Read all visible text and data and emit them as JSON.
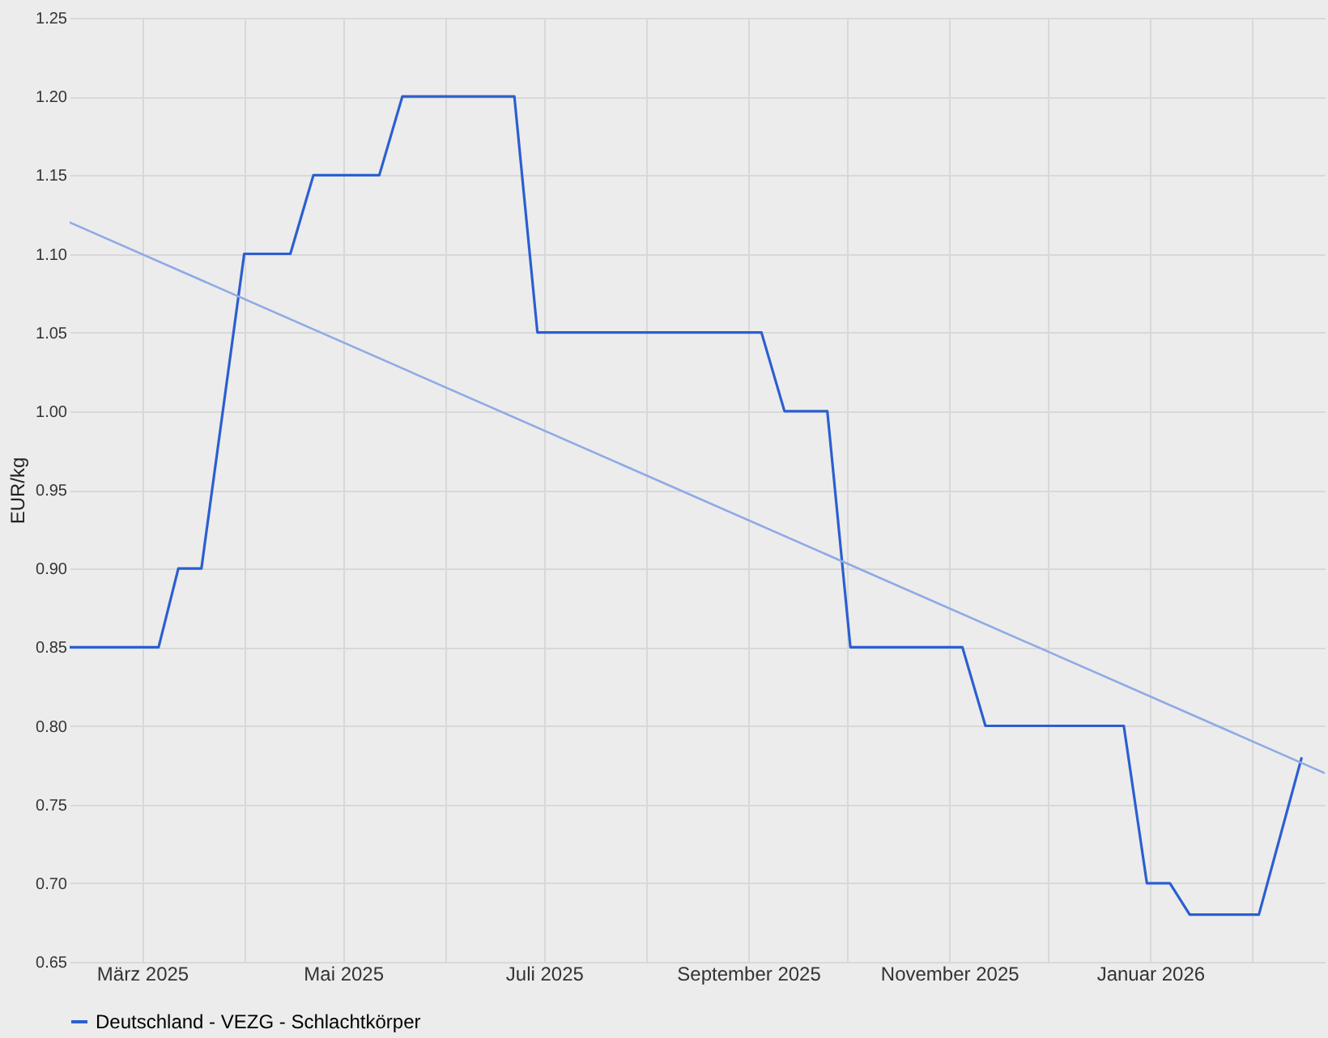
{
  "chart_data": {
    "type": "line",
    "ylabel": "EUR/kg",
    "xlim": [
      "2025-02-07",
      "2026-02-23"
    ],
    "ylim": [
      0.65,
      1.25
    ],
    "yticks": [
      0.65,
      {
        "value": 0.7,
        "label": "0.70"
      },
      0.75,
      {
        "value": 0.8,
        "label": "0.80"
      },
      0.85,
      {
        "value": 0.9,
        "label": "0.90"
      },
      0.95,
      {
        "value": 1,
        "label": "1.00"
      },
      1.05,
      {
        "value": 1.1,
        "label": "1.10"
      },
      1.15,
      {
        "value": 1.2,
        "label": "1.20"
      },
      1.25
    ],
    "xticks": [
      {
        "value": "2025-03-01",
        "label": "März 2025"
      },
      {
        "value": "2025-04-01",
        "label": null
      },
      {
        "value": "2025-05-01",
        "label": "Mai 2025"
      },
      {
        "value": "2025-06-01",
        "label": null
      },
      {
        "value": "2025-07-01",
        "label": "Juli 2025"
      },
      {
        "value": "2025-08-01",
        "label": null
      },
      {
        "value": "2025-09-01",
        "label": "September 2025"
      },
      {
        "value": "2025-10-01",
        "label": null
      },
      {
        "value": "2025-11-01",
        "label": "November 2025"
      },
      {
        "value": "2025-12-01",
        "label": null
      },
      {
        "value": "2026-01-01",
        "label": "Januar 2026"
      },
      {
        "value": "2026-02-01",
        "label": null
      }
    ],
    "x": [
      "2025-02-07",
      "2025-03-06",
      "2025-03-12",
      "2025-03-19",
      "2025-04-01",
      "2025-04-15",
      "2025-04-22",
      "2025-05-12",
      "2025-05-19",
      "2025-06-22",
      "2025-06-29",
      "2025-09-05",
      "2025-09-12",
      "2025-09-25",
      "2025-10-02",
      "2025-11-05",
      "2025-11-12",
      "2025-12-24",
      "2025-12-31",
      "2026-01-07",
      "2026-01-13",
      "2026-02-03",
      "2026-02-16"
    ],
    "series": [
      {
        "name": "Deutschland - VEZG - Schlachtkörper",
        "color": "#2b5fd0",
        "values": [
          0.85,
          0.85,
          0.9,
          0.9,
          1.1,
          1.1,
          1.15,
          1.15,
          1.2,
          1.2,
          1.05,
          1.05,
          1.0,
          1.0,
          0.85,
          0.85,
          0.8,
          0.8,
          0.7,
          0.7,
          0.68,
          0.68,
          0.78
        ]
      },
      {
        "type": "line",
        "color": "#8eaae6",
        "x": [
          "2025-02-07",
          "2026-02-23"
        ],
        "values": [
          1.12,
          0.77
        ]
      }
    ],
    "grid": true,
    "legend": "bottom",
    "marker": "none",
    "line_style": "solid"
  }
}
